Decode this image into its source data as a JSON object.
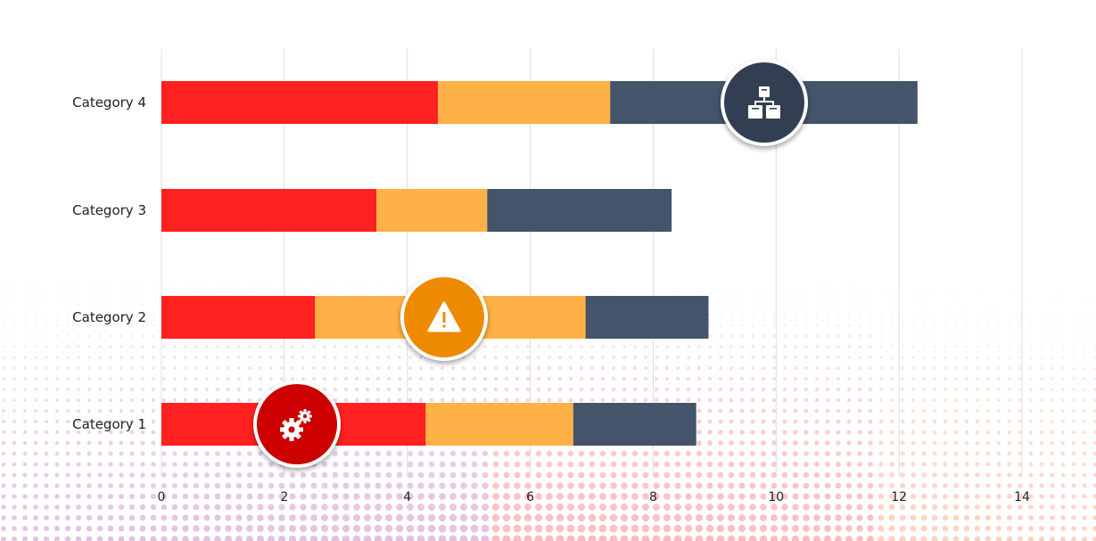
{
  "chart_data": {
    "type": "bar",
    "orientation": "horizontal",
    "stacked": true,
    "categories": [
      "Category 1",
      "Category 2",
      "Category 3",
      "Category 4"
    ],
    "series": [
      {
        "values": [
          4.3,
          2.5,
          3.5,
          4.5
        ],
        "color": "#ff2020"
      },
      {
        "values": [
          2.4,
          4.4,
          1.8,
          2.8
        ],
        "color": "#fdb147"
      },
      {
        "values": [
          2.0,
          2.0,
          3.0,
          5.0
        ],
        "color": "#44546a"
      }
    ],
    "xlim": [
      0,
      14
    ],
    "xticks": [
      0,
      2,
      4,
      6,
      8,
      10,
      12,
      14
    ],
    "grid": "vertical",
    "legend": "none"
  },
  "icons": [
    {
      "name": "gears-icon",
      "color": "#cc0000",
      "category": "Category 1",
      "x": 2.2
    },
    {
      "name": "warning-icon",
      "color": "#ed8a00",
      "category": "Category 2",
      "x": 4.6
    },
    {
      "name": "hierarchy-boxes-icon",
      "color": "#323f52",
      "category": "Category 4",
      "x": 9.8
    }
  ]
}
